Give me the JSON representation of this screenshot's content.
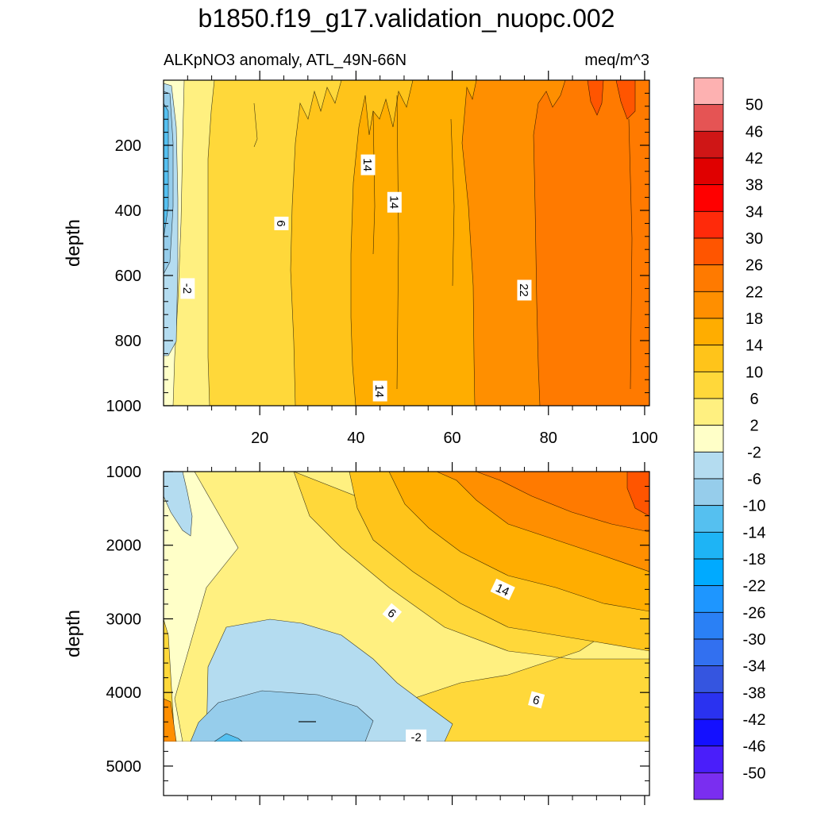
{
  "chart_data": {
    "type": "heatmap",
    "title": "b1850.f19_g17.validation_nuopc.002",
    "subtitle_left": "ALKpNO3 anomaly, ATL_49N-66N",
    "units": "meq/m^3",
    "x_axis": {
      "range": [
        0,
        101
      ],
      "ticks": [
        20,
        40,
        60,
        80,
        100
      ],
      "tick_labels": [
        "20",
        "40",
        "60",
        "80",
        "100"
      ]
    },
    "panels": [
      {
        "name": "upper",
        "ylabel": "depth",
        "ylim": [
          0,
          1000
        ],
        "y_ticks": [
          200,
          400,
          600,
          800,
          1000
        ],
        "y_tick_labels": [
          "200",
          "400",
          "600",
          "800",
          "1000"
        ],
        "contour_labels": [
          {
            "text": "14",
            "x": 42.5,
            "y": 260,
            "rot": 90
          },
          {
            "text": "14",
            "x": 48,
            "y": 375,
            "rot": 90
          },
          {
            "text": "6",
            "x": 24.5,
            "y": 440,
            "rot": 90
          },
          {
            "text": "-2",
            "x": 5,
            "y": 640,
            "rot": 90
          },
          {
            "text": "22",
            "x": 75,
            "y": 645,
            "rot": 90
          },
          {
            "text": "14",
            "x": 45,
            "y": 955,
            "rot": 90
          }
        ]
      },
      {
        "name": "lower",
        "ylabel": "depth",
        "ylim": [
          1000,
          5400
        ],
        "y_ticks": [
          1000,
          2000,
          3000,
          4000,
          5000
        ],
        "y_tick_labels": [
          "1000",
          "2000",
          "3000",
          "4000",
          "5000"
        ],
        "no_data_below": 4650,
        "contour_labels": [
          {
            "text": "14",
            "x": 70.5,
            "y": 2600,
            "rot": 25
          },
          {
            "text": "6",
            "x": 47.5,
            "y": 2920,
            "rot": 40
          },
          {
            "text": "6",
            "x": 77.5,
            "y": 4100,
            "rot": 15
          },
          {
            "text": "-2",
            "x": 52.5,
            "y": 4600,
            "rot": 0
          }
        ]
      }
    ],
    "colorbar": {
      "levels": [
        "50",
        "46",
        "42",
        "38",
        "34",
        "30",
        "26",
        "22",
        "18",
        "14",
        "10",
        "6",
        "2",
        "-2",
        "-6",
        "-10",
        "-14",
        "-18",
        "-22",
        "-26",
        "-30",
        "-34",
        "-38",
        "-42",
        "-46",
        "-50"
      ],
      "colors": [
        "#fdb1b1",
        "#e55454",
        "#cf1616",
        "#e00000",
        "#ff0000",
        "#ff2a0a",
        "#ff5500",
        "#ff7a00",
        "#ff8f00",
        "#ffad00",
        "#ffc41a",
        "#ffd83a",
        "#fff080",
        "#ffffc8",
        "#b4dcf0",
        "#96cdeb",
        "#55c0f0",
        "#1eb4f5",
        "#00aaff",
        "#1e96ff",
        "#2a80f5",
        "#3270f0",
        "#3555e0",
        "#2a32f0",
        "#1410ff",
        "#4a1efa",
        "#7a2ef0"
      ]
    }
  }
}
